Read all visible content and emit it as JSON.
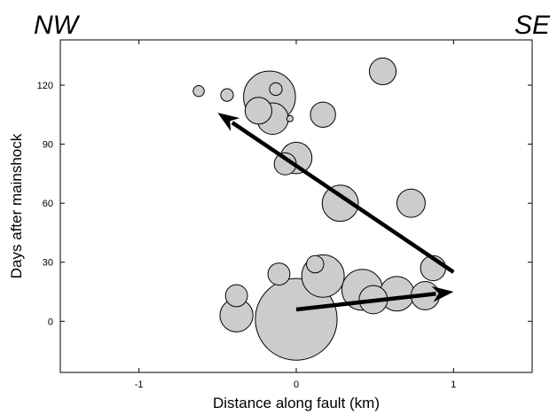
{
  "chart_data": {
    "type": "scatter",
    "title": "",
    "xlabel": "Distance along fault (km)",
    "ylabel": "Days after mainshock",
    "xlim": [
      -1.5,
      1.5
    ],
    "ylim": [
      -26,
      143
    ],
    "x_ticks": [
      -1,
      0,
      1
    ],
    "x_tick_labels": [
      "-1",
      "0",
      "1"
    ],
    "y_ticks": [
      0,
      30,
      60,
      90,
      120
    ],
    "y_tick_labels": [
      "0",
      "30",
      "60",
      "90",
      "120"
    ],
    "grid": false,
    "corner_labels": {
      "left": "NW",
      "right": "SE"
    },
    "marker_color": "#cccccc",
    "marker_edge_color": "#000000",
    "arrow_color": "#000000",
    "points": [
      {
        "x": 0.0,
        "y": 1,
        "r": 0.26
      },
      {
        "x": 0.17,
        "y": 23,
        "r": 0.135
      },
      {
        "x": 0.12,
        "y": 29,
        "r": 0.055
      },
      {
        "x": 0.42,
        "y": 16,
        "r": 0.13
      },
      {
        "x": 0.49,
        "y": 11,
        "r": 0.09
      },
      {
        "x": 0.64,
        "y": 14,
        "r": 0.11
      },
      {
        "x": 0.82,
        "y": 13,
        "r": 0.09
      },
      {
        "x": 0.87,
        "y": 27,
        "r": 0.08
      },
      {
        "x": -0.38,
        "y": 13,
        "r": 0.07
      },
      {
        "x": -0.38,
        "y": 3,
        "r": 0.105
      },
      {
        "x": -0.11,
        "y": 24,
        "r": 0.07
      },
      {
        "x": 0.28,
        "y": 60,
        "r": 0.115
      },
      {
        "x": 0.73,
        "y": 60,
        "r": 0.09
      },
      {
        "x": 0.0,
        "y": 83,
        "r": 0.1
      },
      {
        "x": -0.07,
        "y": 80,
        "r": 0.07
      },
      {
        "x": -0.15,
        "y": 103,
        "r": 0.1
      },
      {
        "x": -0.24,
        "y": 107,
        "r": 0.085
      },
      {
        "x": -0.17,
        "y": 114,
        "r": 0.165
      },
      {
        "x": -0.13,
        "y": 118,
        "r": 0.04
      },
      {
        "x": -0.04,
        "y": 103,
        "r": 0.02
      },
      {
        "x": 0.17,
        "y": 105,
        "r": 0.08
      },
      {
        "x": -0.44,
        "y": 115,
        "r": 0.04
      },
      {
        "x": -0.62,
        "y": 117,
        "r": 0.035
      },
      {
        "x": 0.55,
        "y": 127,
        "r": 0.085
      }
    ],
    "arrows": [
      {
        "from": [
          0.0,
          6
        ],
        "to": [
          1.0,
          15
        ]
      },
      {
        "from": [
          1.0,
          25
        ],
        "to": [
          -0.5,
          106
        ]
      }
    ]
  }
}
